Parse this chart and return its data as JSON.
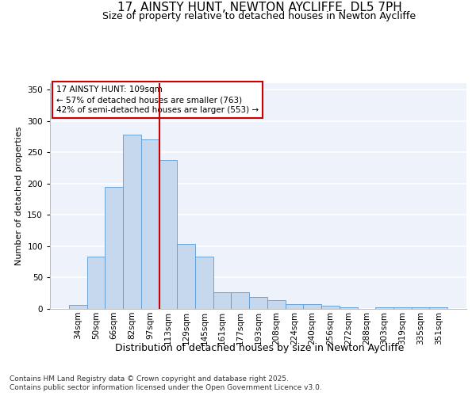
{
  "title_line1": "17, AINSTY HUNT, NEWTON AYCLIFFE, DL5 7PH",
  "title_line2": "Size of property relative to detached houses in Newton Aycliffe",
  "xlabel": "Distribution of detached houses by size in Newton Aycliffe",
  "ylabel": "Number of detached properties",
  "footer_line1": "Contains HM Land Registry data © Crown copyright and database right 2025.",
  "footer_line2": "Contains public sector information licensed under the Open Government Licence v3.0.",
  "categories": [
    "34sqm",
    "50sqm",
    "66sqm",
    "82sqm",
    "97sqm",
    "113sqm",
    "129sqm",
    "145sqm",
    "161sqm",
    "177sqm",
    "193sqm",
    "208sqm",
    "224sqm",
    "240sqm",
    "256sqm",
    "272sqm",
    "288sqm",
    "303sqm",
    "319sqm",
    "335sqm",
    "351sqm"
  ],
  "values": [
    6,
    83,
    195,
    278,
    270,
    238,
    104,
    83,
    27,
    26,
    19,
    14,
    8,
    7,
    5,
    2,
    0,
    3,
    2,
    2,
    2
  ],
  "bar_color": "#c5d8ee",
  "bar_edge_color": "#5b9bd5",
  "bg_color": "#eef2fb",
  "grid_color": "#ffffff",
  "annotation_text": "17 AINSTY HUNT: 109sqm\n← 57% of detached houses are smaller (763)\n42% of semi-detached houses are larger (553) →",
  "annotation_box_color": "#ffffff",
  "annotation_box_edge": "#cc0000",
  "vline_x_index": 4.5,
  "vline_color": "#cc0000",
  "ylim": [
    0,
    360
  ],
  "yticks": [
    0,
    50,
    100,
    150,
    200,
    250,
    300,
    350
  ],
  "title1_fontsize": 11,
  "title2_fontsize": 9,
  "ylabel_fontsize": 8,
  "xlabel_fontsize": 9,
  "tick_fontsize": 7.5,
  "annot_fontsize": 7.5,
  "footer_fontsize": 6.5
}
